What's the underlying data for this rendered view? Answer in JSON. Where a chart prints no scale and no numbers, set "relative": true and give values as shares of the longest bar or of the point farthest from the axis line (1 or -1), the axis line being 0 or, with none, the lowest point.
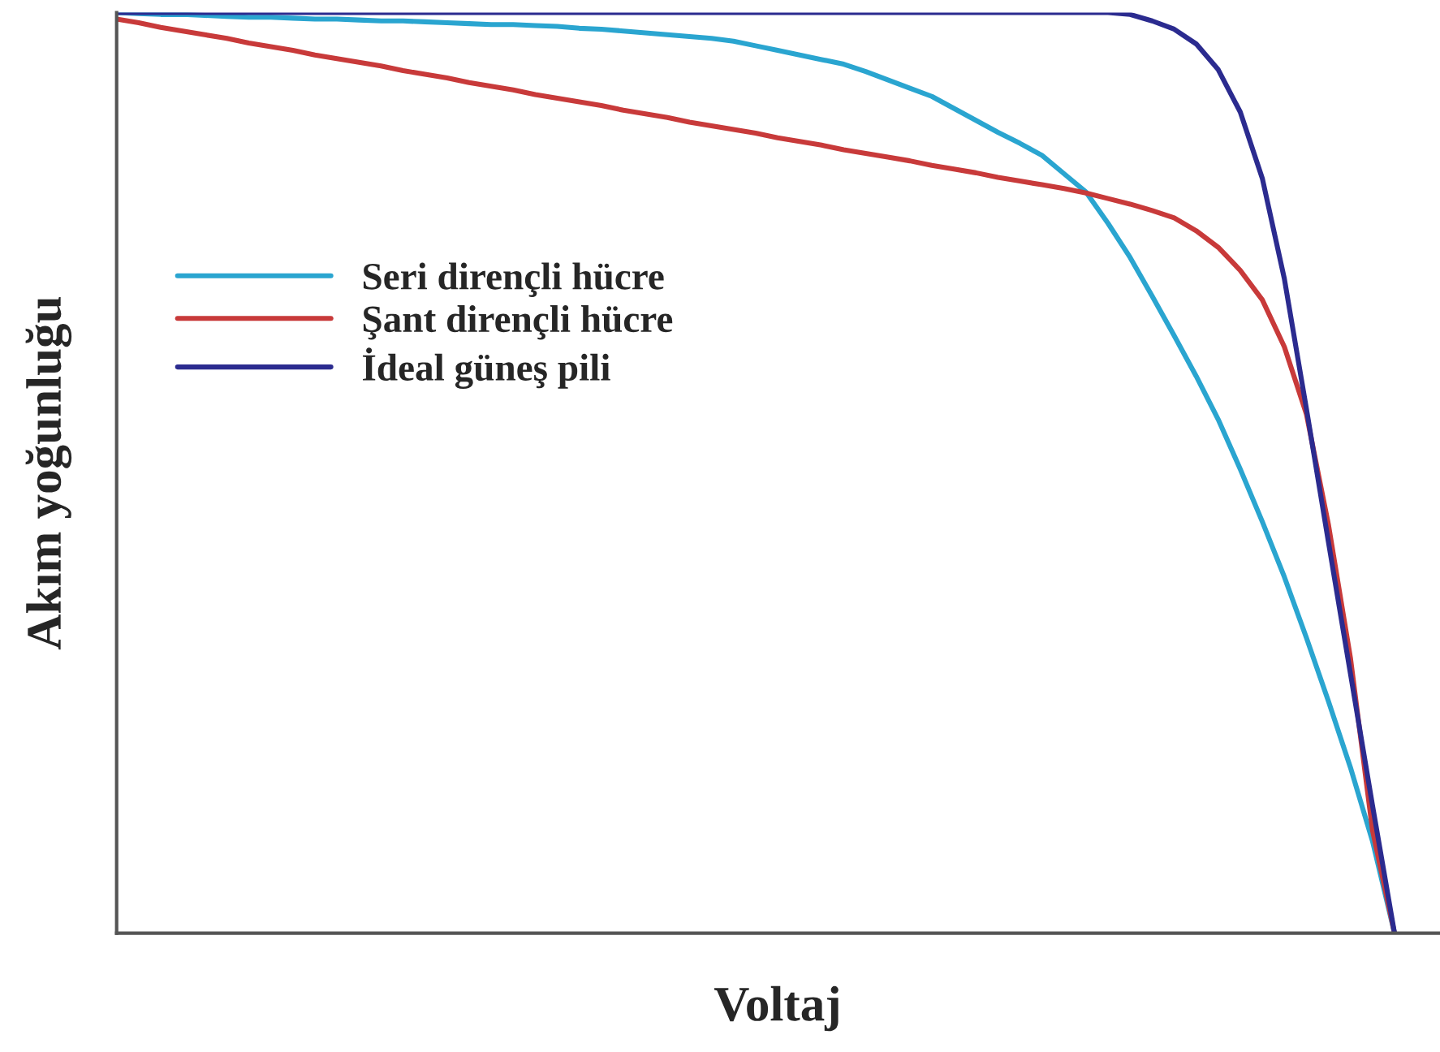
{
  "chart_data": {
    "type": "line",
    "relative": true,
    "xlabel": "Voltaj",
    "ylabel": "Akım yoğunluğu",
    "categories": [
      null,
      null,
      null,
      null,
      null,
      null,
      null,
      null,
      null,
      null,
      null,
      null,
      null,
      null,
      null,
      null,
      null,
      null,
      null,
      null,
      null,
      null,
      null,
      null,
      null,
      null,
      null,
      null,
      null,
      null,
      null,
      null,
      null,
      null,
      null,
      null,
      null,
      null,
      null,
      null,
      null,
      null,
      null,
      null,
      null,
      null,
      null,
      null,
      null,
      null,
      null,
      null,
      null,
      null,
      null,
      null,
      null,
      null,
      null,
      null,
      null
    ],
    "legend": "left",
    "marker": "none",
    "line_style": "solid",
    "series": [
      {
        "name": "Seri dirençli hücre",
        "color": "#2aa5d0",
        "values": [
          1,
          0.999,
          0.998,
          0.998,
          0.997,
          0.996,
          0.995,
          0.995,
          0.994,
          0.993,
          0.993,
          0.992,
          0.991,
          0.991,
          0.99,
          0.989,
          0.988,
          0.987,
          0.987,
          0.986,
          0.985,
          0.983,
          0.982,
          0.98,
          0.978,
          0.976,
          0.974,
          0.972,
          0.969,
          0.964,
          0.959,
          0.954,
          0.949,
          0.944,
          0.936,
          0.927,
          0.918,
          0.909,
          0.896,
          0.883,
          0.87,
          0.858,
          0.845,
          0.825,
          0.805,
          0.771,
          0.734,
          0.692,
          0.649,
          0.605,
          0.558,
          0.504,
          0.447,
          0.387,
          0.321,
          0.252,
          0.18,
          0.1,
          0,
          null,
          null
        ]
      },
      {
        "name": "Şant dirençli hücre",
        "color": "#c83a3a",
        "values": [
          0.993,
          0.989,
          0.984,
          0.98,
          0.976,
          0.972,
          0.967,
          0.963,
          0.959,
          0.954,
          0.95,
          0.946,
          0.942,
          0.937,
          0.933,
          0.929,
          0.924,
          0.92,
          0.916,
          0.911,
          0.907,
          0.903,
          0.899,
          0.894,
          0.89,
          0.886,
          0.881,
          0.877,
          0.873,
          0.869,
          0.864,
          0.86,
          0.856,
          0.851,
          0.847,
          0.843,
          0.839,
          0.834,
          0.83,
          0.826,
          0.821,
          0.817,
          0.813,
          0.809,
          0.804,
          0.798,
          0.792,
          0.785,
          0.777,
          0.763,
          0.745,
          0.72,
          0.688,
          0.637,
          0.564,
          0.444,
          0.299,
          0.112,
          0,
          null,
          null
        ]
      },
      {
        "name": "İdeal güneş pili",
        "color": "#2b2b8f",
        "values": [
          1,
          1,
          1,
          1,
          1,
          1,
          1,
          1,
          1,
          1,
          1,
          1,
          1,
          1,
          1,
          1,
          1,
          1,
          1,
          1,
          1,
          1,
          1,
          1,
          1,
          1,
          1,
          1,
          1,
          1,
          1,
          1,
          1,
          1,
          1,
          1,
          1,
          1,
          1,
          1,
          1,
          1,
          1,
          1,
          1,
          1,
          0.998,
          0.991,
          0.982,
          0.966,
          0.938,
          0.892,
          0.82,
          0.711,
          0.57,
          0.425,
          0.282,
          0.139,
          0,
          null,
          null
        ]
      }
    ]
  }
}
